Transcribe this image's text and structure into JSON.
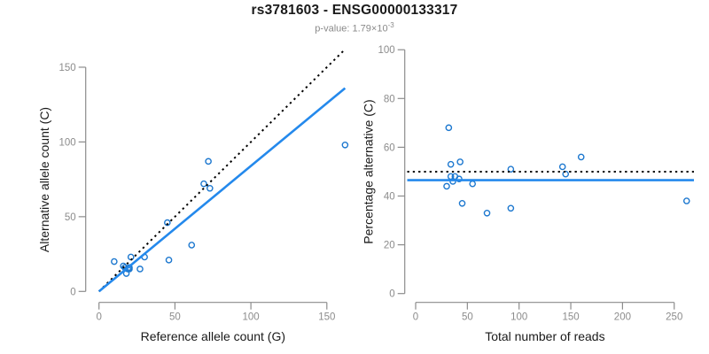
{
  "header": {
    "title": "rs3781603 - ENSG00000133317",
    "subtitle_prefix": "p-value: 1.79×10",
    "subtitle_exponent": "-3"
  },
  "colors": {
    "fit_line": "#2489ec",
    "point_stroke": "#1d78cf",
    "reference_line": "#000000",
    "axis": "#8c8c8c",
    "tick_label": "#8c8c8c",
    "axis_label": "#1a1a1a"
  },
  "chart_data": [
    {
      "type": "scatter",
      "name": "ref-vs-alt-count",
      "xlabel": "Reference allele count (G)",
      "ylabel": "Alternative allele count (C)",
      "xticks": [
        0,
        50,
        100,
        150
      ],
      "yticks": [
        0,
        50,
        100,
        150
      ],
      "xlim": [
        0,
        165
      ],
      "ylim": [
        0,
        162
      ],
      "grid": false,
      "legend_position": "none",
      "points": [
        [
          10,
          20
        ],
        [
          16,
          17
        ],
        [
          17,
          16
        ],
        [
          18,
          12
        ],
        [
          19,
          15
        ],
        [
          20,
          16
        ],
        [
          20,
          15
        ],
        [
          21,
          23
        ],
        [
          27,
          15
        ],
        [
          30,
          23
        ],
        [
          45,
          46
        ],
        [
          46,
          21
        ],
        [
          61,
          31
        ],
        [
          69,
          72
        ],
        [
          72,
          87
        ],
        [
          73,
          69
        ],
        [
          162,
          98
        ]
      ],
      "lines": [
        {
          "name": "identity-50pct-line",
          "style": "dotted",
          "color_key": "reference_line",
          "from": [
            0,
            0
          ],
          "to": [
            161,
            161
          ]
        },
        {
          "name": "fitted-ratio-line",
          "style": "solid",
          "color_key": "fit_line",
          "from": [
            0,
            0
          ],
          "to": [
            162,
            136
          ]
        }
      ]
    },
    {
      "type": "scatter",
      "name": "reads-vs-percentage",
      "xlabel": "Total number of reads",
      "ylabel": "Percentage alternative (C)",
      "xticks": [
        0,
        50,
        100,
        150,
        200,
        250
      ],
      "yticks": [
        0,
        20,
        40,
        60,
        80,
        100
      ],
      "xlim": [
        0,
        270
      ],
      "ylim": [
        0,
        100
      ],
      "grid": false,
      "legend_position": "none",
      "points": [
        [
          30,
          44
        ],
        [
          32,
          68
        ],
        [
          34,
          53
        ],
        [
          34,
          48
        ],
        [
          36,
          46
        ],
        [
          38,
          48
        ],
        [
          42,
          47
        ],
        [
          43,
          54
        ],
        [
          45,
          37
        ],
        [
          55,
          45
        ],
        [
          69,
          33
        ],
        [
          92,
          51
        ],
        [
          92,
          35
        ],
        [
          142,
          52
        ],
        [
          145,
          49
        ],
        [
          160,
          56
        ],
        [
          262,
          38
        ]
      ],
      "hlines": [
        {
          "name": "expected-50pct-line",
          "style": "dotted",
          "color_key": "reference_line",
          "y": 50
        },
        {
          "name": "mean-percentage-line",
          "style": "solid",
          "color_key": "fit_line",
          "y": 46.5
        }
      ]
    }
  ]
}
